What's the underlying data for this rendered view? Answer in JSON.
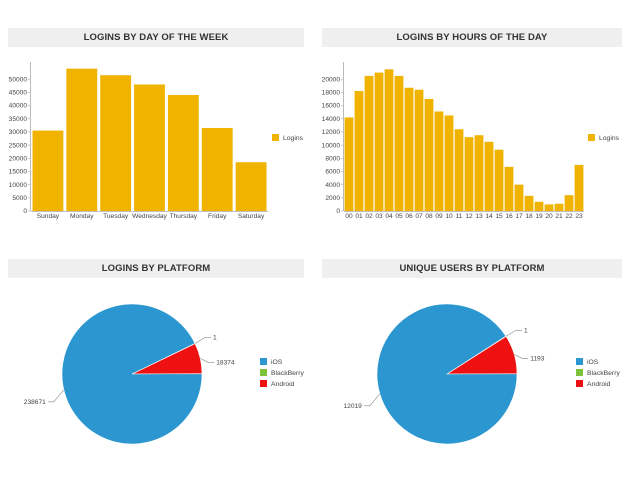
{
  "chart_data": [
    {
      "type": "bar",
      "title": "LOGINS BY DAY OF THE WEEK",
      "categories": [
        "Sunday",
        "Monday",
        "Tuesday",
        "Wednesday",
        "Thursday",
        "Friday",
        "Saturday"
      ],
      "series": [
        {
          "name": "Logins",
          "values": [
            30500,
            54000,
            51500,
            48000,
            44000,
            31500,
            18500
          ]
        }
      ],
      "yticks": [
        "0",
        "5000",
        "10000",
        "15000",
        "20000",
        "25000",
        "30000",
        "35000",
        "40000",
        "45000",
        "50000"
      ],
      "ylim": [
        0,
        55000
      ],
      "legend": "right",
      "color": "#f0b400"
    },
    {
      "type": "bar",
      "title": "LOGINS BY HOURS OF THE DAY",
      "categories": [
        "00",
        "01",
        "02",
        "03",
        "04",
        "05",
        "06",
        "07",
        "08",
        "09",
        "10",
        "11",
        "12",
        "13",
        "14",
        "15",
        "16",
        "17",
        "18",
        "19",
        "20",
        "21",
        "22",
        "23"
      ],
      "series": [
        {
          "name": "Logins",
          "values": [
            14200,
            18200,
            20500,
            21000,
            21500,
            20500,
            18700,
            18400,
            17000,
            15100,
            14500,
            12400,
            11200,
            11500,
            10500,
            9300,
            6700,
            4000,
            2300,
            1400,
            1000,
            1100,
            2400,
            7000
          ]
        }
      ],
      "yticks": [
        "0",
        "2000",
        "4000",
        "6000",
        "8000",
        "10000",
        "12000",
        "14000",
        "16000",
        "18000",
        "20000"
      ],
      "ylim": [
        0,
        22000
      ],
      "legend": "right",
      "color": "#f0b400"
    },
    {
      "type": "pie",
      "title": "LOGINS BY PLATFORM",
      "labels": [
        "iOS",
        "BlackBerry",
        "Android"
      ],
      "values": [
        238671,
        1,
        18374
      ],
      "value_labels": [
        "238671",
        "1",
        "18374"
      ],
      "colors": [
        "#2b96cf",
        "#7cc23b",
        "#ee1111"
      ],
      "legend": "right"
    },
    {
      "type": "pie",
      "title": "UNIQUE USERS BY PLATFORM",
      "labels": [
        "iOS",
        "BlackBerry",
        "Android"
      ],
      "values": [
        12019,
        1,
        1193
      ],
      "value_labels": [
        "12019",
        "1",
        "1193"
      ],
      "colors": [
        "#2b96cf",
        "#7cc23b",
        "#ee1111"
      ],
      "legend": "right"
    }
  ]
}
